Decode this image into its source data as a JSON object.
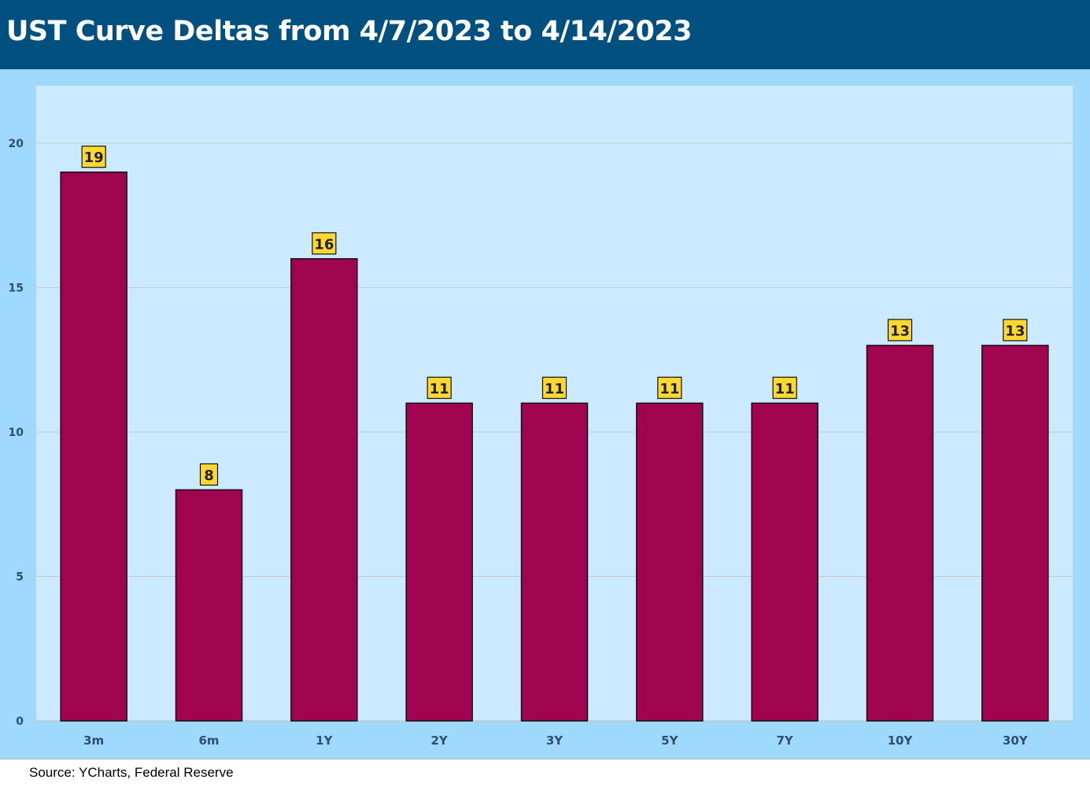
{
  "header": {
    "title": "UST Curve Deltas from 4/7/2023 to 4/14/2023"
  },
  "colors": {
    "header_bg": "#02507f",
    "outer_bg": "#9fd9fd",
    "plot_bg": "#cceaff",
    "bar": "#a00350",
    "label_bg": "#ffd733"
  },
  "chart_data": {
    "type": "bar",
    "categories": [
      "3m",
      "6m",
      "1Y",
      "2Y",
      "3Y",
      "5Y",
      "7Y",
      "10Y",
      "30Y"
    ],
    "values": [
      19,
      8,
      16,
      11,
      11,
      11,
      11,
      13,
      13
    ],
    "title": "UST Curve Deltas from 4/7/2023 to 4/14/2023",
    "xlabel": "",
    "ylabel": "",
    "ylim": [
      0,
      20
    ],
    "yticks": [
      0,
      5,
      10,
      15,
      20
    ],
    "grid": true,
    "legend": "none",
    "data_labels": true
  },
  "footer": {
    "source": "Source: YCharts, Federal Reserve"
  }
}
